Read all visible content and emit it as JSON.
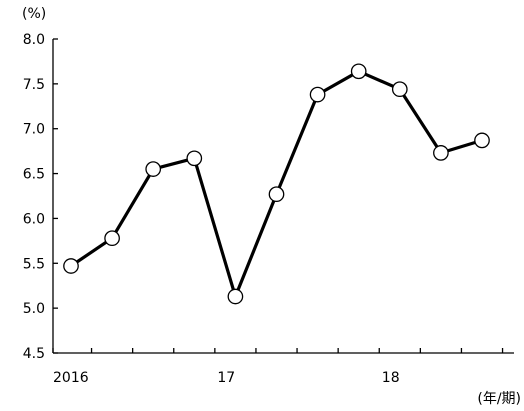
{
  "chart_data": {
    "type": "line",
    "title": "",
    "y_unit": "(%)",
    "x_unit": "(年/期)",
    "ylim": [
      4.5,
      8.0
    ],
    "y_ticks": [
      "4.5",
      "5.0",
      "5.5",
      "6.0",
      "6.5",
      "7.0",
      "7.5",
      "8.0"
    ],
    "x_tick_labels": [
      {
        "label": "2016",
        "at_index": 0
      },
      {
        "label": "17",
        "at_index": 4
      },
      {
        "label": "18",
        "at_index": 8
      }
    ],
    "grid": false,
    "legend": "none",
    "series": [
      {
        "color": "#000000",
        "x": [
          "2016Q1",
          "2016Q2",
          "2016Q3",
          "2016Q4",
          "2017Q1",
          "2017Q2",
          "2017Q3",
          "2017Q4",
          "2018Q1",
          "2018Q2",
          "2018Q3",
          "2018Q4"
        ],
        "values": [
          5.47,
          5.78,
          6.55,
          6.67,
          5.13,
          6.27,
          7.38,
          7.64,
          7.44,
          6.73,
          6.87,
          null
        ]
      }
    ]
  }
}
